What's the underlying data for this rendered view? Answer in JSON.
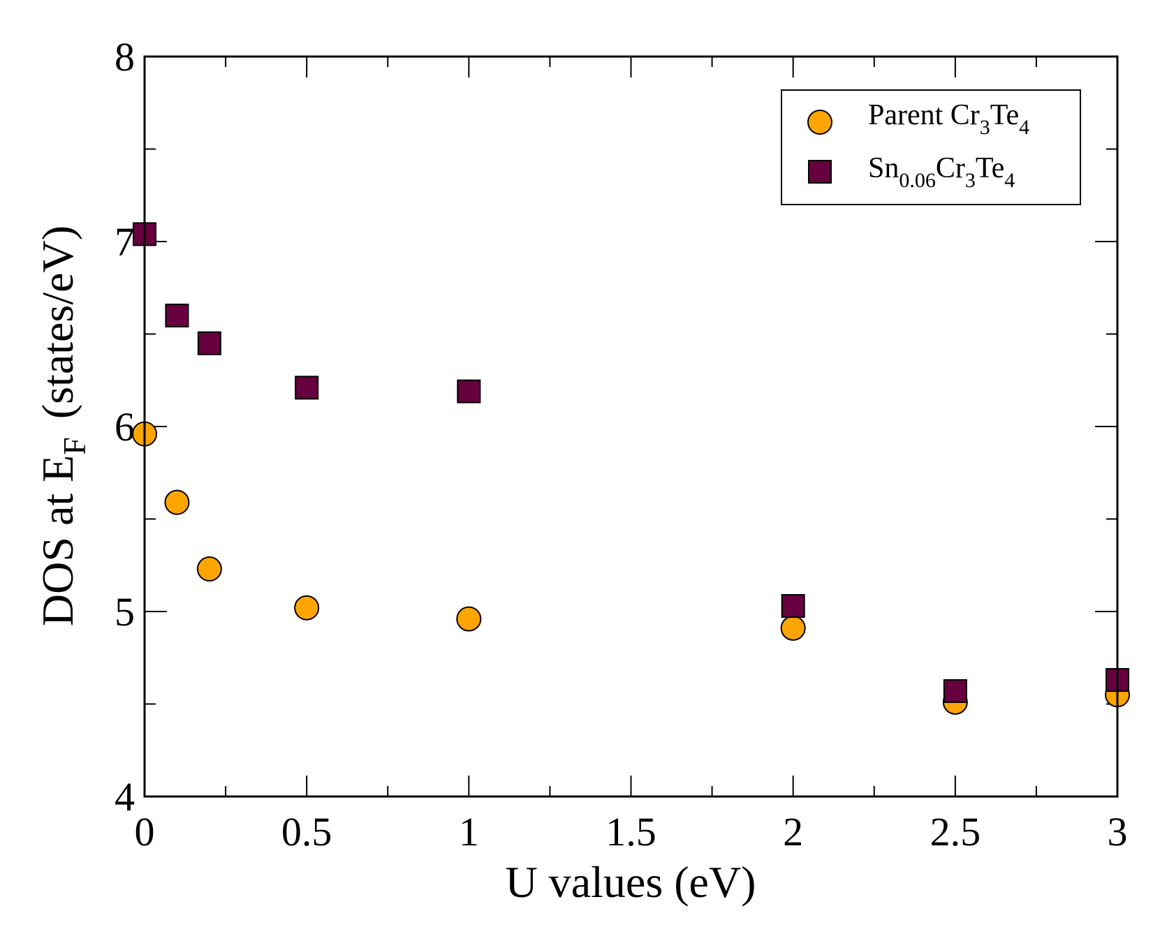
{
  "chart_data": {
    "type": "scatter",
    "title": "",
    "xlabel": "U values (eV)",
    "ylabel": {
      "main": "DOS at E",
      "subscript": "F",
      "units": "(states/eV)"
    },
    "xlim": [
      0,
      3
    ],
    "ylim": [
      4,
      8
    ],
    "x_ticks": [
      0,
      0.5,
      1,
      1.5,
      2,
      2.5,
      3
    ],
    "x_tick_labels": [
      "0",
      "0.5",
      "1",
      "1.5",
      "2",
      "2.5",
      "3"
    ],
    "x_minor_step": 0.25,
    "y_ticks": [
      4,
      5,
      6,
      7,
      8
    ],
    "y_tick_labels": [
      "4",
      "5",
      "6",
      "7",
      "8"
    ],
    "y_minor_step": 0.5,
    "grid": false,
    "legend_position": "top-right",
    "series": [
      {
        "name": "Parent Cr3Te4",
        "label_parts": [
          {
            "text": "Parent Cr",
            "sub": false
          },
          {
            "text": "3",
            "sub": true
          },
          {
            "text": "Te",
            "sub": false
          },
          {
            "text": "4",
            "sub": true
          }
        ],
        "marker": "circle",
        "color": "#FFA500",
        "x": [
          0,
          0.1,
          0.2,
          0.5,
          1,
          2,
          2.5,
          3
        ],
        "y": [
          5.96,
          5.59,
          5.23,
          5.02,
          4.96,
          4.91,
          4.51,
          4.55
        ]
      },
      {
        "name": "Sn0.06Cr3Te4",
        "label_parts": [
          {
            "text": "Sn",
            "sub": false
          },
          {
            "text": "0.06",
            "sub": true
          },
          {
            "text": "Cr",
            "sub": false
          },
          {
            "text": "3",
            "sub": true
          },
          {
            "text": "Te",
            "sub": false
          },
          {
            "text": "4",
            "sub": true
          }
        ],
        "marker": "square",
        "color": "#67003F",
        "x": [
          0,
          0.1,
          0.2,
          0.5,
          1,
          2,
          2.5,
          3
        ],
        "y": [
          7.04,
          6.6,
          6.45,
          6.21,
          6.19,
          5.03,
          4.57,
          4.63
        ]
      }
    ]
  }
}
